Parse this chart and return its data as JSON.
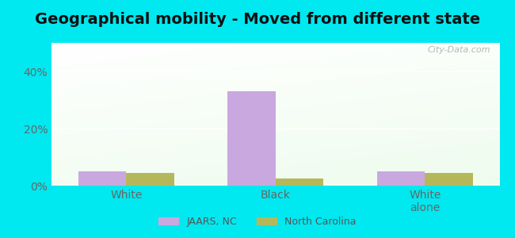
{
  "title": "Geographical mobility - Moved from different state",
  "categories": [
    "White",
    "Black",
    "White\nalone"
  ],
  "jaars_values": [
    5.0,
    33.0,
    5.0
  ],
  "nc_values": [
    4.5,
    2.5,
    4.5
  ],
  "jaars_color": "#c9a8e0",
  "nc_color": "#b5b85a",
  "bar_width": 0.32,
  "ylim": [
    0,
    50
  ],
  "yticks": [
    0,
    20,
    40
  ],
  "ytick_labels": [
    "0%",
    "20%",
    "40%"
  ],
  "background_outer": "#00e8f0",
  "grid_color": "#ffffff",
  "title_fontsize": 14,
  "tick_fontsize": 10,
  "legend_labels": [
    "JAARS, NC",
    "North Carolina"
  ],
  "watermark": "City-Data.com"
}
